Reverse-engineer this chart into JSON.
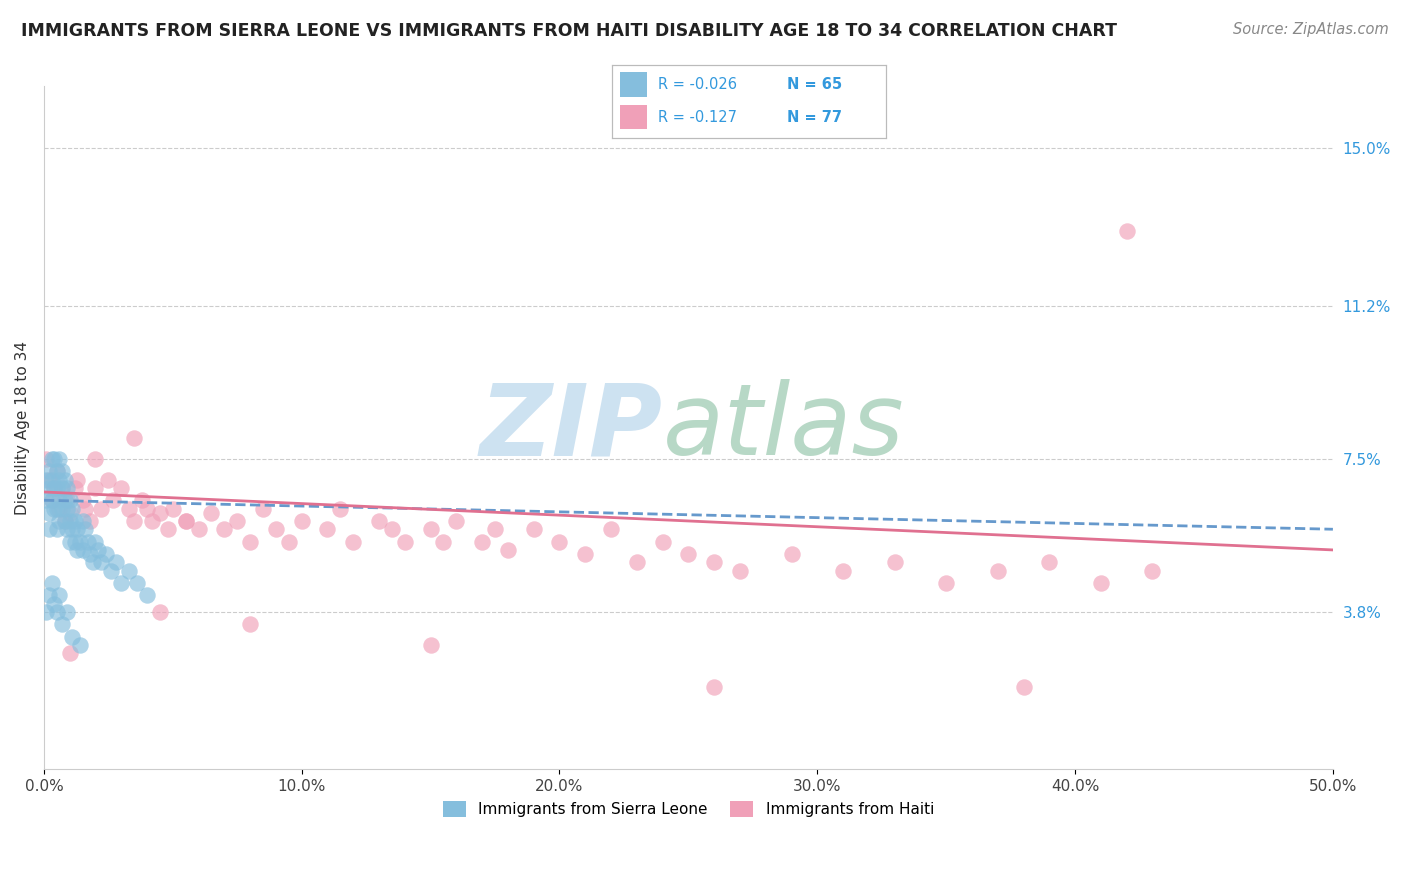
{
  "title": "IMMIGRANTS FROM SIERRA LEONE VS IMMIGRANTS FROM HAITI DISABILITY AGE 18 TO 34 CORRELATION CHART",
  "source": "Source: ZipAtlas.com",
  "ylabel": "Disability Age 18 to 34",
  "xlim": [
    0.0,
    0.5
  ],
  "ylim": [
    0.0,
    0.165
  ],
  "xtick_labels": [
    "0.0%",
    "10.0%",
    "20.0%",
    "30.0%",
    "40.0%",
    "50.0%"
  ],
  "xtick_vals": [
    0.0,
    0.1,
    0.2,
    0.3,
    0.4,
    0.5
  ],
  "ytick_labels_right": [
    "3.8%",
    "7.5%",
    "11.2%",
    "15.0%"
  ],
  "ytick_vals_right": [
    0.038,
    0.075,
    0.112,
    0.15
  ],
  "gridline_color": "#cccccc",
  "background_color": "#ffffff",
  "watermark_zip": "ZIP",
  "watermark_atlas": "atlas",
  "watermark_color_zip": "#c5dff0",
  "watermark_color_atlas": "#b8d4c8",
  "sierra_leone_color": "#85BEDD",
  "haiti_color": "#F0A0B8",
  "sierra_leone_line_color": "#6699CC",
  "haiti_line_color": "#E07090",
  "legend_R_sierra": "R = -0.026",
  "legend_N_sierra": "N = 65",
  "legend_R_haiti": "R = -0.127",
  "legend_N_haiti": "N = 77",
  "legend_label_sierra": "Immigrants from Sierra Leone",
  "legend_label_haiti": "Immigrants from Haiti",
  "sierra_leone_x": [
    0.001,
    0.001,
    0.002,
    0.002,
    0.002,
    0.002,
    0.003,
    0.003,
    0.003,
    0.004,
    0.004,
    0.004,
    0.005,
    0.005,
    0.005,
    0.005,
    0.006,
    0.006,
    0.006,
    0.006,
    0.007,
    0.007,
    0.007,
    0.008,
    0.008,
    0.008,
    0.009,
    0.009,
    0.009,
    0.01,
    0.01,
    0.01,
    0.011,
    0.011,
    0.012,
    0.012,
    0.013,
    0.013,
    0.014,
    0.015,
    0.015,
    0.016,
    0.017,
    0.018,
    0.019,
    0.02,
    0.021,
    0.022,
    0.024,
    0.026,
    0.028,
    0.03,
    0.033,
    0.036,
    0.04,
    0.001,
    0.002,
    0.003,
    0.004,
    0.005,
    0.006,
    0.007,
    0.009,
    0.011,
    0.014
  ],
  "sierra_leone_y": [
    0.065,
    0.07,
    0.072,
    0.068,
    0.062,
    0.058,
    0.075,
    0.07,
    0.065,
    0.068,
    0.063,
    0.075,
    0.072,
    0.068,
    0.063,
    0.058,
    0.075,
    0.07,
    0.065,
    0.06,
    0.072,
    0.068,
    0.063,
    0.07,
    0.065,
    0.06,
    0.068,
    0.063,
    0.058,
    0.065,
    0.06,
    0.055,
    0.063,
    0.058,
    0.06,
    0.055,
    0.058,
    0.053,
    0.055,
    0.06,
    0.053,
    0.058,
    0.055,
    0.052,
    0.05,
    0.055,
    0.053,
    0.05,
    0.052,
    0.048,
    0.05,
    0.045,
    0.048,
    0.045,
    0.042,
    0.038,
    0.042,
    0.045,
    0.04,
    0.038,
    0.042,
    0.035,
    0.038,
    0.032,
    0.03
  ],
  "haiti_x": [
    0.001,
    0.002,
    0.003,
    0.004,
    0.005,
    0.006,
    0.007,
    0.008,
    0.009,
    0.01,
    0.012,
    0.013,
    0.015,
    0.016,
    0.018,
    0.02,
    0.022,
    0.025,
    0.027,
    0.03,
    0.033,
    0.035,
    0.038,
    0.04,
    0.042,
    0.045,
    0.048,
    0.05,
    0.055,
    0.06,
    0.065,
    0.07,
    0.075,
    0.08,
    0.085,
    0.09,
    0.095,
    0.1,
    0.11,
    0.115,
    0.12,
    0.13,
    0.135,
    0.14,
    0.15,
    0.155,
    0.16,
    0.17,
    0.175,
    0.18,
    0.19,
    0.2,
    0.21,
    0.22,
    0.23,
    0.24,
    0.25,
    0.26,
    0.27,
    0.29,
    0.31,
    0.33,
    0.35,
    0.37,
    0.39,
    0.41,
    0.43,
    0.01,
    0.02,
    0.035,
    0.055,
    0.08,
    0.15,
    0.26,
    0.38,
    0.42,
    0.045
  ],
  "haiti_y": [
    0.075,
    0.07,
    0.065,
    0.068,
    0.072,
    0.063,
    0.068,
    0.06,
    0.065,
    0.062,
    0.068,
    0.07,
    0.065,
    0.063,
    0.06,
    0.068,
    0.063,
    0.07,
    0.065,
    0.068,
    0.063,
    0.06,
    0.065,
    0.063,
    0.06,
    0.062,
    0.058,
    0.063,
    0.06,
    0.058,
    0.062,
    0.058,
    0.06,
    0.055,
    0.063,
    0.058,
    0.055,
    0.06,
    0.058,
    0.063,
    0.055,
    0.06,
    0.058,
    0.055,
    0.058,
    0.055,
    0.06,
    0.055,
    0.058,
    0.053,
    0.058,
    0.055,
    0.052,
    0.058,
    0.05,
    0.055,
    0.052,
    0.05,
    0.048,
    0.052,
    0.048,
    0.05,
    0.045,
    0.048,
    0.05,
    0.045,
    0.048,
    0.028,
    0.075,
    0.08,
    0.06,
    0.035,
    0.03,
    0.02,
    0.02,
    0.13,
    0.038
  ]
}
